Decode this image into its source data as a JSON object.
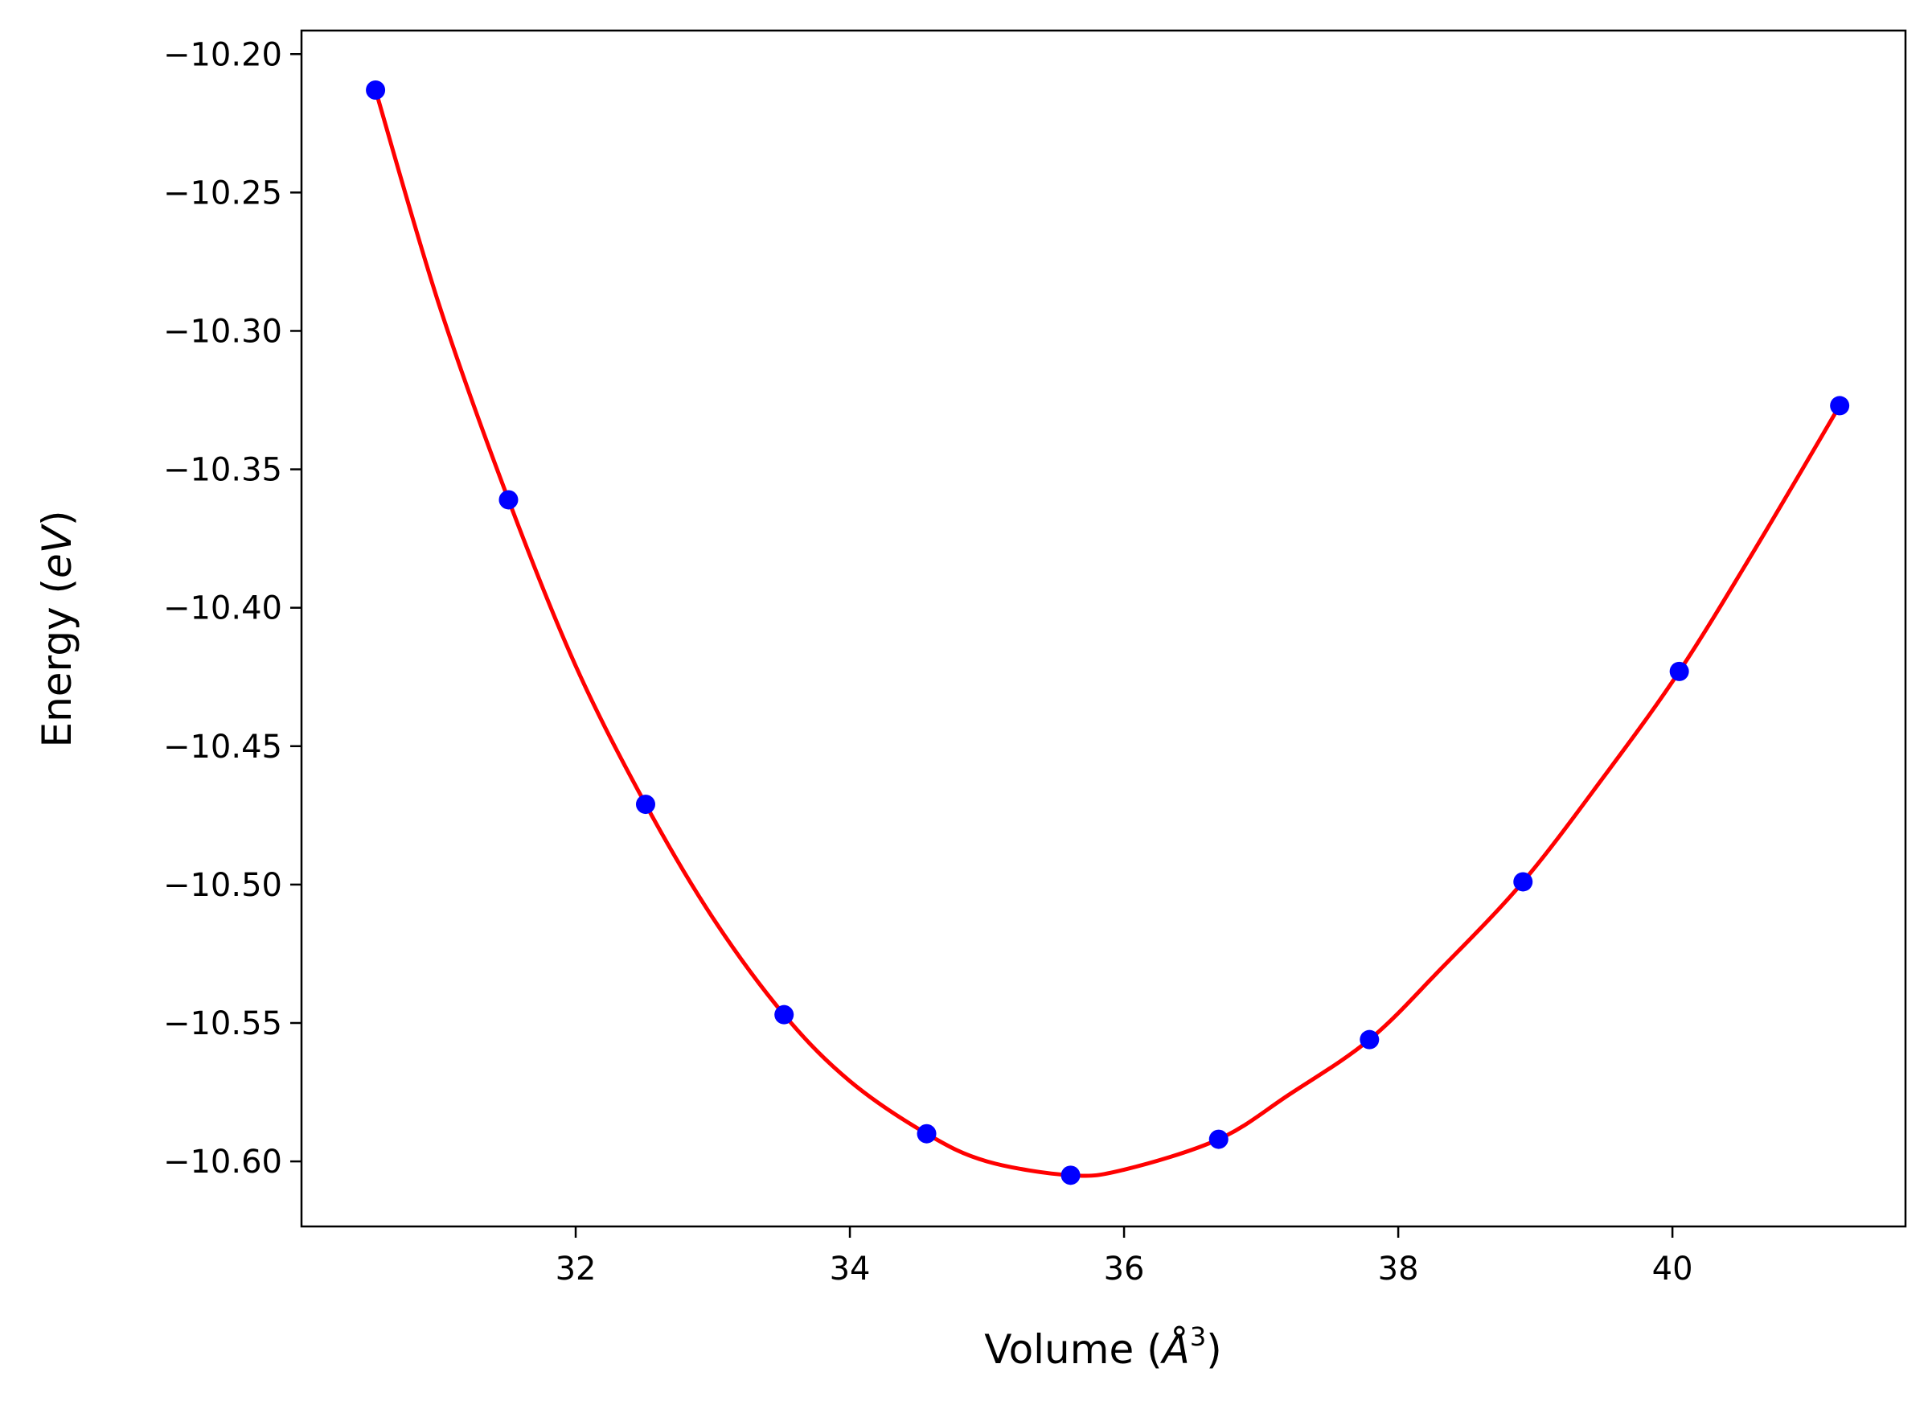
{
  "chart_data": {
    "type": "line",
    "title": "",
    "xlabel": "Volume",
    "xlabel_unit_prefix": "(",
    "xlabel_unit": "Å",
    "xlabel_unit_exp": "3",
    "xlabel_unit_suffix": ")",
    "ylabel": "Energy",
    "ylabel_unit_prefix": "(",
    "ylabel_unit": "eV",
    "ylabel_unit_suffix": ")",
    "xlim": [
      30.0,
      41.7
    ],
    "ylim": [
      -10.6235,
      -10.1915
    ],
    "x_ticks": [
      32,
      34,
      36,
      38,
      40
    ],
    "x_tick_labels": [
      "32",
      "34",
      "36",
      "38",
      "40"
    ],
    "y_ticks": [
      -10.2,
      -10.25,
      -10.3,
      -10.35,
      -10.4,
      -10.45,
      -10.5,
      -10.55,
      -10.6
    ],
    "y_tick_labels": [
      "−10.20",
      "−10.25",
      "−10.30",
      "−10.35",
      "−10.40",
      "−10.45",
      "−10.50",
      "−10.55",
      "−10.60"
    ],
    "grid": false,
    "legend": "none",
    "series": [
      {
        "kind": "scatter",
        "color": "#0000ff",
        "x": [
          30.54,
          31.51,
          32.51,
          33.52,
          34.56,
          35.61,
          36.69,
          37.79,
          38.91,
          40.05,
          41.22
        ],
        "y": [
          -10.213,
          -10.361,
          -10.471,
          -10.547,
          -10.59,
          -10.605,
          -10.592,
          -10.556,
          -10.499,
          -10.423,
          -10.327
        ]
      },
      {
        "kind": "fit-line",
        "color": "#ff0000",
        "x": [
          30.54,
          31.0,
          31.51,
          32.0,
          32.51,
          33.0,
          33.52,
          34.0,
          34.56,
          35.0,
          35.61,
          36.0,
          36.69,
          37.2,
          37.79,
          38.3,
          38.91,
          39.5,
          40.05,
          40.6,
          41.22
        ],
        "y": [
          -10.213,
          -10.29,
          -10.361,
          -10.421,
          -10.471,
          -10.512,
          -10.547,
          -10.571,
          -10.59,
          -10.6,
          -10.605,
          -10.603,
          -10.592,
          -10.576,
          -10.556,
          -10.531,
          -10.499,
          -10.461,
          -10.423,
          -10.379,
          -10.327
        ]
      }
    ]
  }
}
